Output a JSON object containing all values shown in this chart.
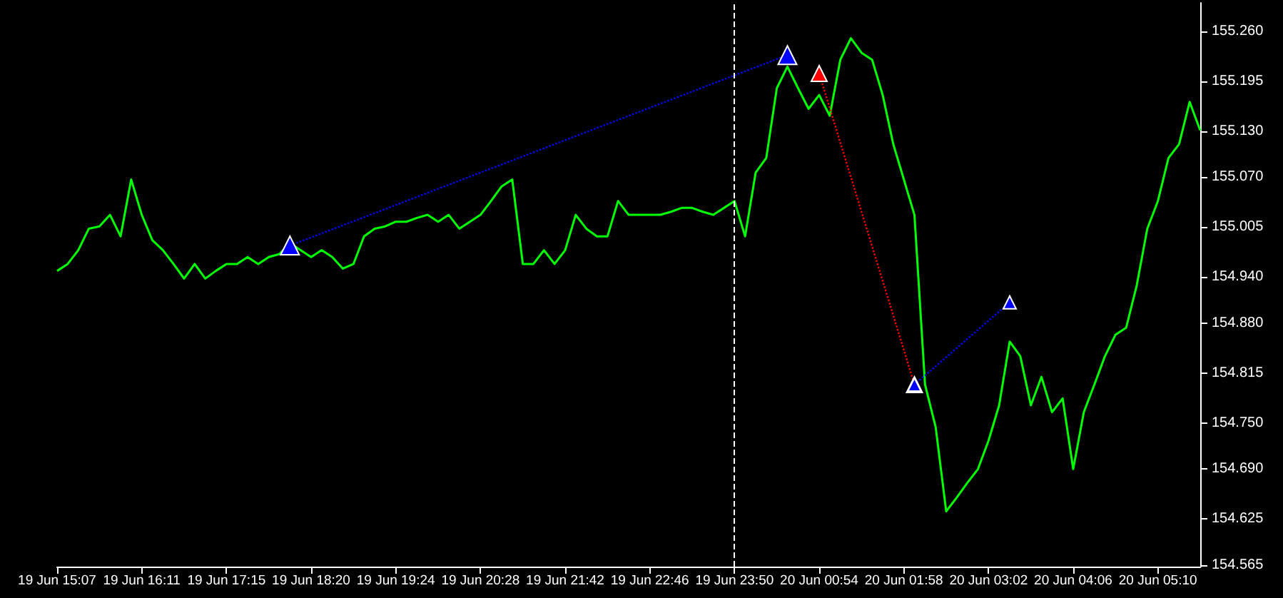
{
  "chart_data": {
    "type": "line",
    "categories": [
      "19 Jun 15:07",
      null,
      null,
      null,
      null,
      null,
      null,
      null,
      "19 Jun 16:11",
      null,
      null,
      null,
      null,
      null,
      null,
      null,
      "19 Jun 17:15",
      null,
      null,
      null,
      null,
      null,
      null,
      null,
      "19 Jun 18:20",
      null,
      null,
      null,
      null,
      null,
      null,
      null,
      "19 Jun 19:24",
      null,
      null,
      null,
      null,
      null,
      null,
      null,
      "19 Jun 20:28",
      null,
      null,
      null,
      null,
      null,
      null,
      null,
      "19 Jun 21:42",
      null,
      null,
      null,
      null,
      null,
      null,
      null,
      "19 Jun 22:46",
      null,
      null,
      null,
      null,
      null,
      null,
      null,
      "19 Jun 23:50",
      null,
      null,
      null,
      null,
      null,
      null,
      null,
      "20 Jun 00:54",
      null,
      null,
      null,
      null,
      null,
      null,
      null,
      "20 Jun 01:58",
      null,
      null,
      null,
      null,
      null,
      null,
      null,
      "20 Jun 03:02",
      null,
      null,
      null,
      null,
      null,
      null,
      null,
      "20 Jun 04:06",
      null,
      null,
      null,
      null,
      null,
      null,
      null,
      "20 Jun 05:10",
      null,
      null,
      null,
      null
    ],
    "series": [
      {
        "color": "#00ff00",
        "marker": "none",
        "line_style": "solid",
        "values": [
          154.948,
          154.957,
          154.975,
          155.003,
          155.006,
          155.021,
          154.993,
          155.067,
          155.021,
          154.988,
          154.975,
          154.957,
          154.938,
          154.957,
          154.938,
          154.948,
          154.957,
          154.957,
          154.966,
          154.957,
          154.966,
          154.97,
          154.984,
          154.975,
          154.966,
          154.975,
          154.966,
          154.951,
          154.957,
          154.993,
          155.003,
          155.006,
          155.012,
          155.012,
          155.017,
          155.021,
          155.012,
          155.021,
          155.003,
          155.012,
          155.021,
          155.039,
          155.058,
          155.067,
          154.957,
          154.957,
          154.975,
          154.957,
          154.975,
          155.021,
          155.003,
          154.993,
          154.993,
          155.039,
          155.021,
          155.021,
          155.021,
          155.021,
          155.025,
          155.03,
          155.03,
          155.025,
          155.021,
          155.03,
          155.039,
          154.993,
          155.076,
          155.095,
          155.186,
          155.214,
          155.186,
          155.159,
          155.177,
          155.15,
          155.223,
          155.251,
          155.232,
          155.223,
          155.177,
          155.113,
          155.067,
          155.021,
          154.8,
          154.745,
          154.635,
          154.653,
          154.672,
          154.69,
          154.727,
          154.773,
          154.856,
          154.837,
          154.773,
          154.81,
          154.764,
          154.782,
          154.69,
          154.764,
          154.8,
          154.837,
          154.865,
          154.874,
          154.929,
          155.003,
          155.039,
          155.095,
          155.113,
          155.168,
          155.131
        ]
      },
      {
        "color": "#0000ff",
        "marker": "triangle",
        "line_style": "dotted",
        "values": [
          null,
          null,
          null,
          null,
          null,
          null,
          null,
          null,
          null,
          null,
          null,
          null,
          null,
          null,
          null,
          null,
          null,
          null,
          null,
          null,
          null,
          null,
          154.981,
          null,
          null,
          null,
          null,
          null,
          null,
          null,
          null,
          null,
          null,
          null,
          null,
          null,
          null,
          null,
          null,
          null,
          null,
          null,
          null,
          null,
          null,
          null,
          null,
          null,
          null,
          null,
          null,
          null,
          null,
          null,
          null,
          null,
          null,
          null,
          null,
          null,
          null,
          null,
          null,
          null,
          null,
          null,
          null,
          null,
          null,
          155.229,
          null,
          null,
          null,
          null,
          null,
          null,
          null,
          null,
          null,
          null,
          null,
          null,
          null,
          null,
          null,
          null,
          null,
          null,
          null,
          null,
          null,
          null,
          null,
          null,
          null,
          null,
          null,
          null,
          null,
          null,
          null,
          null,
          null,
          null,
          null,
          null,
          null,
          null,
          null
        ]
      },
      {
        "color": "#ff0000",
        "marker": "triangle",
        "line_style": "dotted",
        "values": [
          null,
          null,
          null,
          null,
          null,
          null,
          null,
          null,
          null,
          null,
          null,
          null,
          null,
          null,
          null,
          null,
          null,
          null,
          null,
          null,
          null,
          null,
          null,
          null,
          null,
          null,
          null,
          null,
          null,
          null,
          null,
          null,
          null,
          null,
          null,
          null,
          null,
          null,
          null,
          null,
          null,
          null,
          null,
          null,
          null,
          null,
          null,
          null,
          null,
          null,
          null,
          null,
          null,
          null,
          null,
          null,
          null,
          null,
          null,
          null,
          null,
          null,
          null,
          null,
          null,
          null,
          null,
          null,
          null,
          null,
          null,
          null,
          155.205,
          null,
          null,
          null,
          null,
          null,
          null,
          null,
          null,
          154.8,
          null,
          null,
          null,
          null,
          null,
          null,
          null,
          null,
          null,
          null,
          null,
          null,
          null,
          null,
          null,
          null,
          null,
          null,
          null,
          null,
          null,
          null,
          null,
          null,
          null,
          null,
          null
        ]
      },
      {
        "color": "#0000ff",
        "marker": "triangle",
        "line_style": "dotted",
        "values": [
          null,
          null,
          null,
          null,
          null,
          null,
          null,
          null,
          null,
          null,
          null,
          null,
          null,
          null,
          null,
          null,
          null,
          null,
          null,
          null,
          null,
          null,
          null,
          null,
          null,
          null,
          null,
          null,
          null,
          null,
          null,
          null,
          null,
          null,
          null,
          null,
          null,
          null,
          null,
          null,
          null,
          null,
          null,
          null,
          null,
          null,
          null,
          null,
          null,
          null,
          null,
          null,
          null,
          null,
          null,
          null,
          null,
          null,
          null,
          null,
          null,
          null,
          null,
          null,
          null,
          null,
          null,
          null,
          null,
          null,
          null,
          null,
          null,
          null,
          null,
          null,
          null,
          null,
          null,
          null,
          null,
          154.8,
          null,
          null,
          null,
          null,
          null,
          null,
          null,
          null,
          154.907,
          null,
          null,
          null,
          null,
          null,
          null,
          null,
          null,
          null,
          null,
          null,
          null,
          null,
          null,
          null,
          null,
          null,
          null
        ]
      }
    ],
    "ylim": [
      154.563,
      155.297
    ],
    "yticks": [
      154.565,
      154.625,
      {
        "value": 154.69,
        "label": "154.690"
      },
      {
        "value": 154.75,
        "label": "154.750"
      },
      154.815,
      {
        "value": 154.88,
        "label": "154.880"
      },
      {
        "value": 154.94,
        "label": "154.940"
      },
      155.005,
      {
        "value": 155.07,
        "label": "155.070"
      },
      {
        "value": 155.13,
        "label": "155.130"
      },
      155.195,
      {
        "value": 155.26,
        "label": "155.260"
      }
    ],
    "ref_lines": [
      {
        "axis": "x",
        "value": "19 Jun 23:50",
        "color": "#ffffff",
        "line_style": "dashed"
      }
    ]
  }
}
